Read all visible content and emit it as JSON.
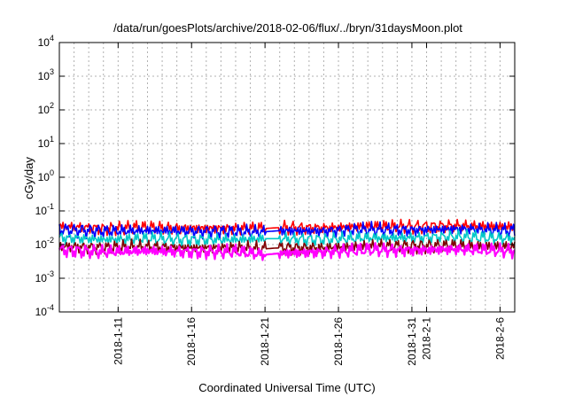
{
  "chart_data": {
    "type": "line",
    "title": "/data/run/goesPlots/archive/2018-02-06/flux/../bryn/31daysMoon.plot",
    "xlabel": "Coordinated Universal Time (UTC)",
    "ylabel": "cGy/day",
    "yscale": "log",
    "ylim": [
      0.0001,
      10000
    ],
    "xlim": [
      "2018-01-07",
      "2018-02-07"
    ],
    "grid": true,
    "legend": "none",
    "y_ticks": [
      {
        "base": "10",
        "exp": "-4",
        "value": 0.0001
      },
      {
        "base": "10",
        "exp": "-3",
        "value": 0.001
      },
      {
        "base": "10",
        "exp": "-2",
        "value": 0.01
      },
      {
        "base": "10",
        "exp": "-1",
        "value": 0.1
      },
      {
        "base": "10",
        "exp": "0",
        "value": 1
      },
      {
        "base": "10",
        "exp": "1",
        "value": 10
      },
      {
        "base": "10",
        "exp": "2",
        "value": 100
      },
      {
        "base": "10",
        "exp": "3",
        "value": 1000
      },
      {
        "base": "10",
        "exp": "4",
        "value": 10000
      }
    ],
    "x_ticks": [
      {
        "label": "2018-1-11",
        "date": "2018-01-11"
      },
      {
        "label": "2018-1-16",
        "date": "2018-01-16"
      },
      {
        "label": "2018-1-21",
        "date": "2018-01-21"
      },
      {
        "label": "2018-1-26",
        "date": "2018-01-26"
      },
      {
        "label": "2018-1-31",
        "date": "2018-01-31"
      },
      {
        "label": "2018-2-1",
        "date": "2018-02-01"
      },
      {
        "label": "2018-2-6",
        "date": "2018-02-06"
      }
    ],
    "data_gap": [
      "2018-01-21",
      "2018-01-22"
    ],
    "series": [
      {
        "color": "#ff0000",
        "x": [
          "2018-01-07",
          "2018-01-10",
          "2018-01-13",
          "2018-01-16",
          "2018-01-19",
          "2018-01-21",
          "2018-01-22",
          "2018-01-25",
          "2018-01-28",
          "2018-01-31",
          "2018-02-03",
          "2018-02-07"
        ],
        "y": [
          0.035,
          0.03,
          0.032,
          0.031,
          0.03,
          0.03,
          0.032,
          0.031,
          0.035,
          0.034,
          0.036,
          0.033
        ]
      },
      {
        "color": "#0000ff",
        "x": [
          "2018-01-07",
          "2018-01-10",
          "2018-01-13",
          "2018-01-16",
          "2018-01-19",
          "2018-01-21",
          "2018-01-22",
          "2018-01-25",
          "2018-01-28",
          "2018-01-31",
          "2018-02-03",
          "2018-02-07"
        ],
        "y": [
          0.028,
          0.025,
          0.026,
          0.025,
          0.024,
          0.024,
          0.026,
          0.025,
          0.028,
          0.027,
          0.029,
          0.026
        ]
      },
      {
        "color": "#00c8c8",
        "x": [
          "2018-01-07",
          "2018-01-10",
          "2018-01-13",
          "2018-01-16",
          "2018-01-19",
          "2018-01-21",
          "2018-01-22",
          "2018-01-25",
          "2018-01-28",
          "2018-01-31",
          "2018-02-03",
          "2018-02-07"
        ],
        "y": [
          0.016,
          0.014,
          0.015,
          0.014,
          0.014,
          0.015,
          0.015,
          0.014,
          0.016,
          0.016,
          0.017,
          0.015
        ]
      },
      {
        "color": "#800000",
        "x": [
          "2018-01-07",
          "2018-01-10",
          "2018-01-13",
          "2018-01-16",
          "2018-01-19",
          "2018-01-21",
          "2018-01-22",
          "2018-01-25",
          "2018-01-28",
          "2018-01-31",
          "2018-02-03",
          "2018-02-07"
        ],
        "y": [
          0.009,
          0.008,
          0.0085,
          0.008,
          0.008,
          0.0075,
          0.008,
          0.008,
          0.009,
          0.009,
          0.0095,
          0.0085
        ]
      },
      {
        "color": "#ff00ff",
        "x": [
          "2018-01-07",
          "2018-01-10",
          "2018-01-13",
          "2018-01-16",
          "2018-01-19",
          "2018-01-21",
          "2018-01-22",
          "2018-01-25",
          "2018-01-28",
          "2018-01-31",
          "2018-02-03",
          "2018-02-07"
        ],
        "y": [
          0.007,
          0.006,
          0.0065,
          0.006,
          0.0062,
          0.005,
          0.0055,
          0.006,
          0.007,
          0.0068,
          0.0072,
          0.0065
        ]
      }
    ]
  }
}
